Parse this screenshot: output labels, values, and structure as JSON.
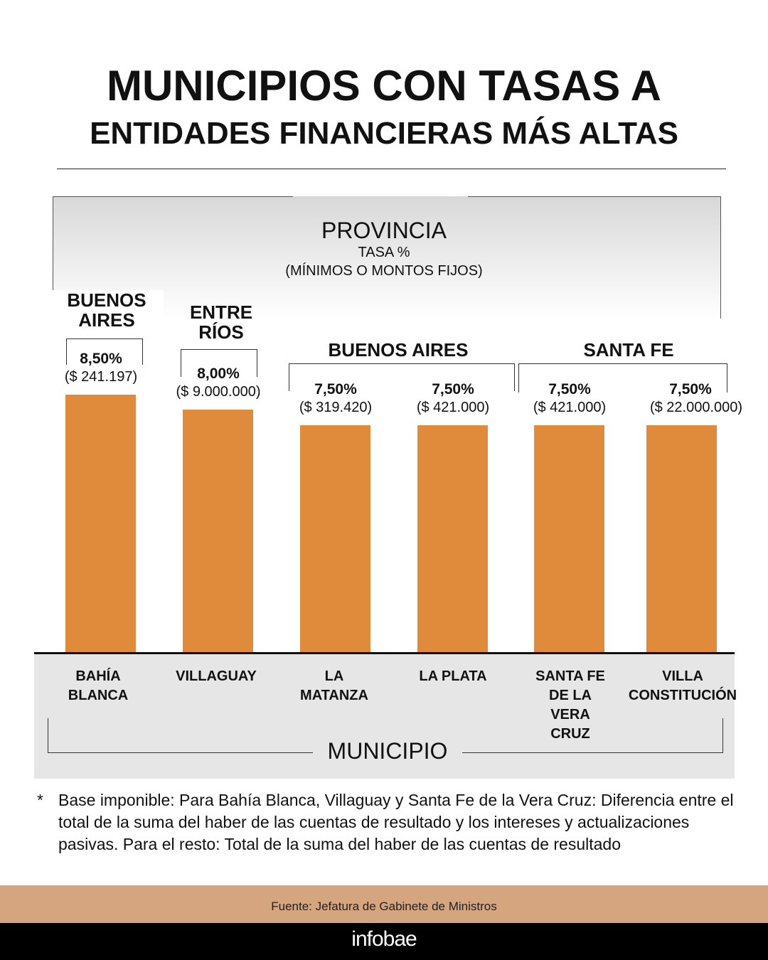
{
  "title_line1": "MUNICIPIOS CON TASAS A",
  "title_line2": "ENTIDADES FINANCIERAS MÁS ALTAS",
  "chart_data": {
    "type": "bar",
    "provincia_label": "PROVINCIA",
    "ylabel": "TASA %",
    "ylabel_sub": "(MÍNIMOS O MONTOS FIJOS)",
    "xlabel": "MUNICIPIO",
    "groups": [
      {
        "name_l1": "BUENOS",
        "name_l2": "AIRES"
      },
      {
        "name_l1": "ENTRE",
        "name_l2": "RÍOS"
      },
      {
        "name": "BUENOS AIRES"
      },
      {
        "name": "SANTA FE"
      }
    ],
    "categories": [
      "BAHÍA BLANCA",
      "VILLAGUAY",
      "LA MATANZA",
      "LA PLATA",
      "SANTA FE DE LA VERA CRUZ",
      "VILLA CONSTITUCIÓN"
    ],
    "category_lines": [
      [
        "BAHÍA",
        "BLANCA"
      ],
      [
        "VILLAGUAY"
      ],
      [
        "LA",
        "MATANZA"
      ],
      [
        "LA PLATA"
      ],
      [
        "SANTA FE",
        "DE LA",
        "VERA",
        "CRUZ"
      ],
      [
        "VILLA",
        "CONSTITUCIÓN"
      ]
    ],
    "values": [
      8.5,
      8.0,
      7.5,
      7.5,
      7.5,
      7.5
    ],
    "value_labels": [
      "8,50%",
      "8,00%",
      "7,50%",
      "7,50%",
      "7,50%",
      "7,50%"
    ],
    "amount_labels": [
      "($ 241.197)",
      "($ 9.000.000)",
      "($ 319.420)",
      "($ 421.000)",
      "($ 421.000)",
      "($ 22.000.000)"
    ],
    "bar_color": "#e08b3c"
  },
  "note_marker": "*",
  "note": "Base imponible: Para Bahía Blanca, Villaguay y Santa Fe de la Vera Cruz: Diferencia entre el total de la suma del haber de las cuentas de resultado y los intereses y actualizaciones pasivas. Para el resto: Total de la suma del haber de las cuentas de resultado",
  "source": "Fuente: Jefatura de Gabinete de Ministros",
  "brand": "infobae"
}
